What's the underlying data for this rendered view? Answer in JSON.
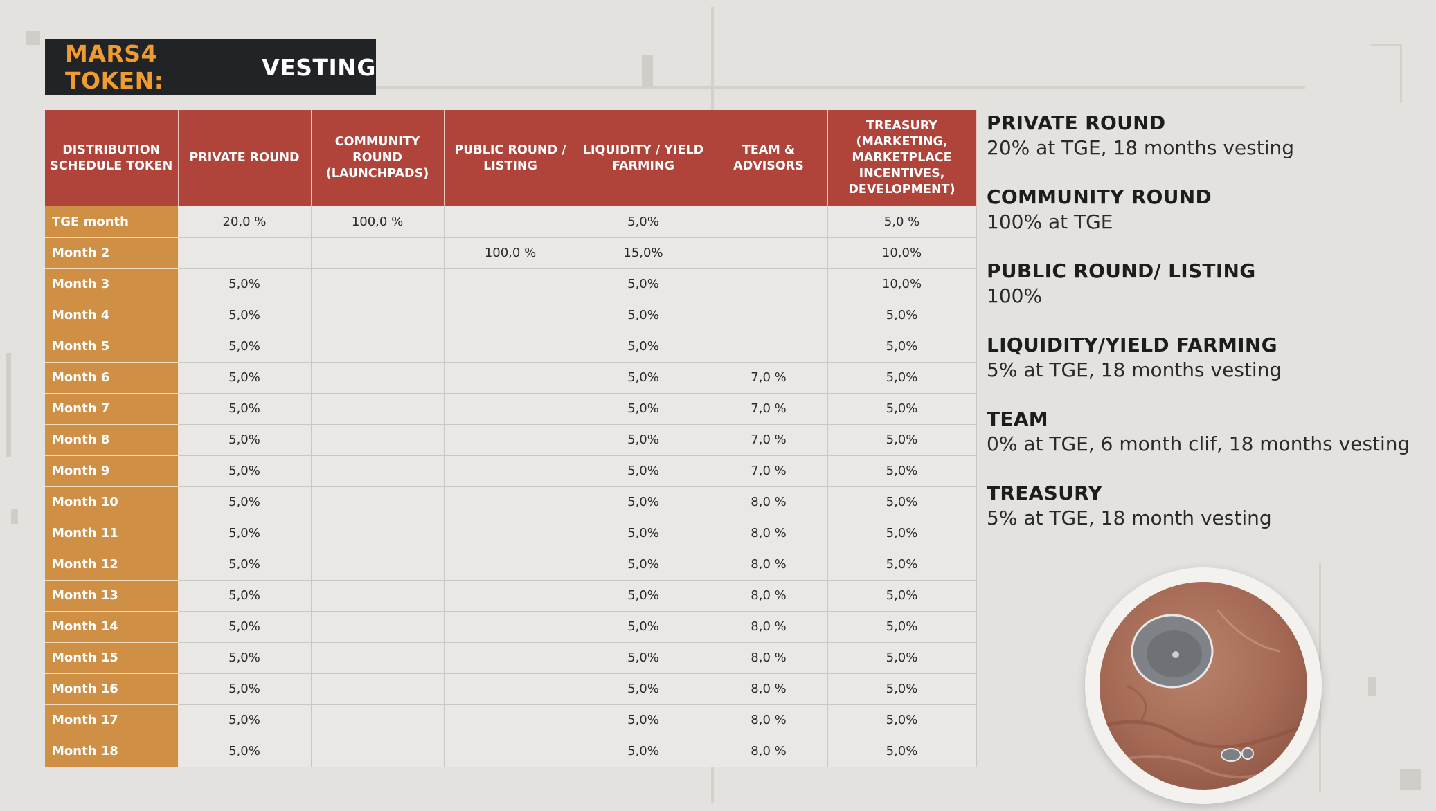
{
  "title": {
    "accent": "MARS4 TOKEN:",
    "main": "VESTING"
  },
  "table": {
    "headers": [
      "DISTRIBUTION SCHEDULE TOKEN",
      "PRIVATE ROUND",
      "COMMUNITY ROUND (LAUNCHPADS)",
      "PUBLIC ROUND / LISTING",
      "LIQUIDITY / YIELD FARMING",
      "TEAM & ADVISORS",
      "TREASURY (MARKETING, MARKETPLACE INCENTIVES, DEVELOPMENT)"
    ],
    "rows": [
      [
        "TGE month",
        "20,0 %",
        "100,0 %",
        "",
        "5,0%",
        "",
        "5,0 %"
      ],
      [
        "Month 2",
        "",
        "",
        "100,0 %",
        "15,0%",
        "",
        "10,0%"
      ],
      [
        "Month 3",
        "5,0%",
        "",
        "",
        "5,0%",
        "",
        "10,0%"
      ],
      [
        "Month 4",
        "5,0%",
        "",
        "",
        "5,0%",
        "",
        "5,0%"
      ],
      [
        "Month 5",
        "5,0%",
        "",
        "",
        "5,0%",
        "",
        "5,0%"
      ],
      [
        "Month 6",
        "5,0%",
        "",
        "",
        "5,0%",
        "7,0 %",
        "5,0%"
      ],
      [
        "Month 7",
        "5,0%",
        "",
        "",
        "5,0%",
        "7,0 %",
        "5,0%"
      ],
      [
        "Month 8",
        "5,0%",
        "",
        "",
        "5,0%",
        "7,0 %",
        "5,0%"
      ],
      [
        "Month 9",
        "5,0%",
        "",
        "",
        "5,0%",
        "7,0 %",
        "5,0%"
      ],
      [
        "Month 10",
        "5,0%",
        "",
        "",
        "5,0%",
        "8,0 %",
        "5,0%"
      ],
      [
        "Month 11",
        "5,0%",
        "",
        "",
        "5,0%",
        "8,0 %",
        "5,0%"
      ],
      [
        "Month 12",
        "5,0%",
        "",
        "",
        "5,0%",
        "8,0 %",
        "5,0%"
      ],
      [
        "Month 13",
        "5,0%",
        "",
        "",
        "5,0%",
        "8,0 %",
        "5,0%"
      ],
      [
        "Month 14",
        "5,0%",
        "",
        "",
        "5,0%",
        "8,0 %",
        "5,0%"
      ],
      [
        "Month 15",
        "5,0%",
        "",
        "",
        "5,0%",
        "8,0 %",
        "5,0%"
      ],
      [
        "Month  16",
        "5,0%",
        "",
        "",
        "5,0%",
        "8,0 %",
        "5,0%"
      ],
      [
        "Month 17",
        "5,0%",
        "",
        "",
        "5,0%",
        "8,0 %",
        "5,0%"
      ],
      [
        "Month 18",
        "5,0%",
        "",
        "",
        "5,0%",
        "8,0 %",
        "5,0%"
      ]
    ]
  },
  "notes": [
    {
      "title": "PRIVATE ROUND",
      "desc": "20% at TGE, 18 months vesting"
    },
    {
      "title": "COMMUNITY  ROUND",
      "desc": "100% at TGE"
    },
    {
      "title": "PUBLIC ROUND/ LISTING",
      "desc": "100%"
    },
    {
      "title": "LIQUIDITY/YIELD FARMING",
      "desc": "5% at TGE, 18  months vesting"
    },
    {
      "title": "TEAM",
      "desc": "0% at TGE, 6 month clif, 18 months vesting"
    },
    {
      "title": "TREASURY",
      "desc": "5% at TGE, 18  month vesting"
    }
  ],
  "colors": {
    "background": "#e3e2de",
    "title_bg": "#212327",
    "title_accent": "#ee9b2f",
    "header_bg": "#b0443a",
    "row_label_bg": "#cf8f44",
    "cell_bg": "#e9e8e5"
  },
  "icons": {
    "planet": "mars-planet-image"
  }
}
